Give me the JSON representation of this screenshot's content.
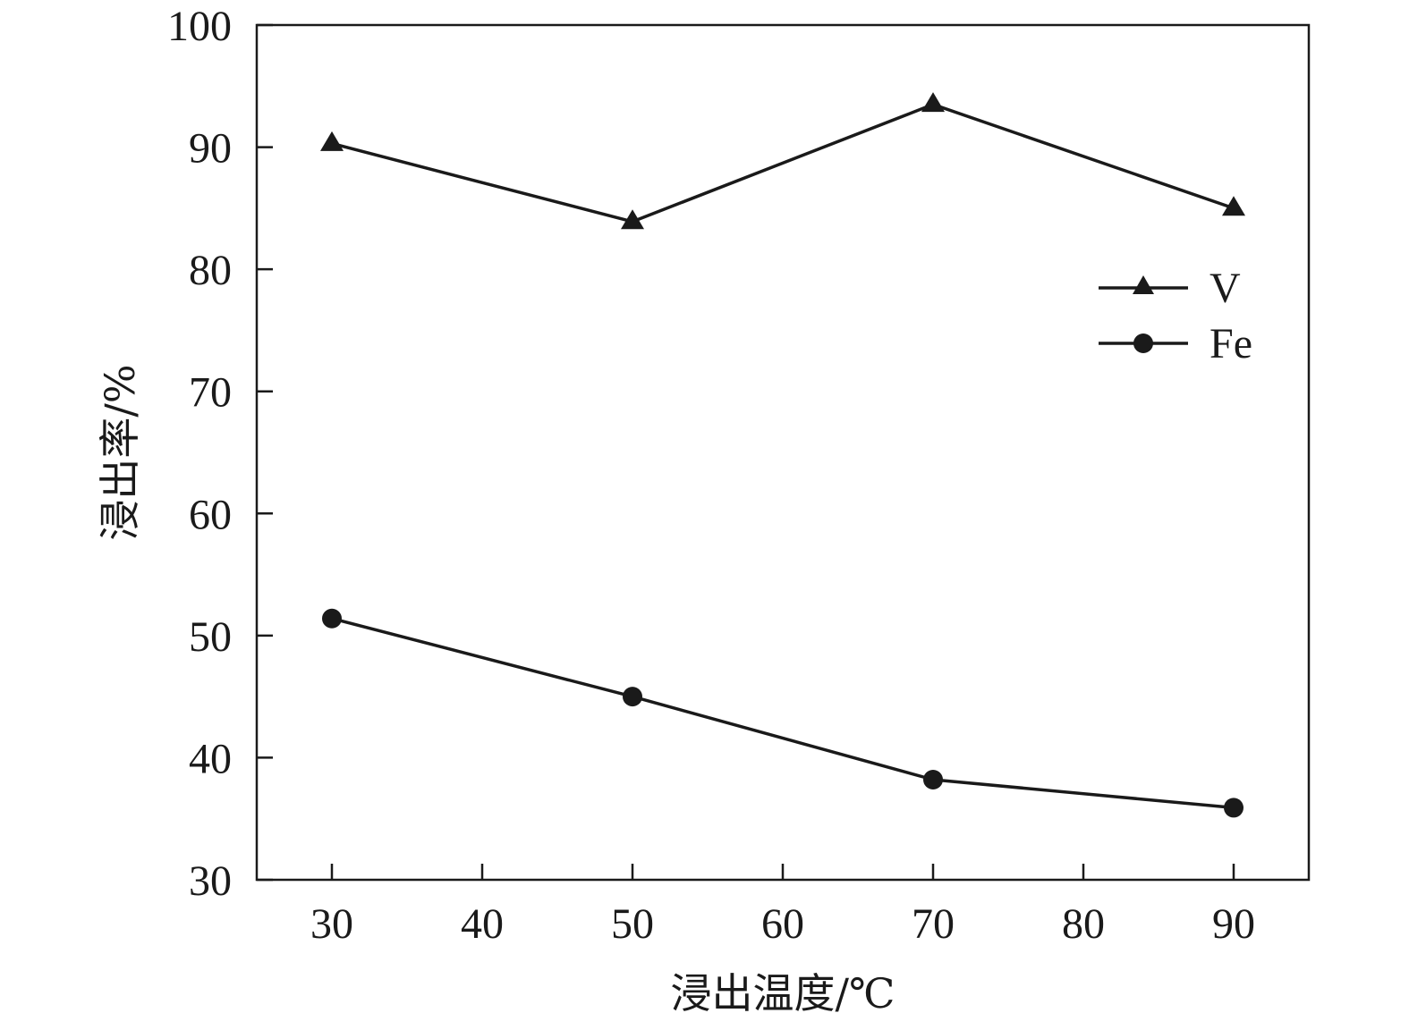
{
  "chart_data": {
    "type": "line",
    "title": "",
    "xlabel": "浸出温度/℃",
    "ylabel": "浸出率/%",
    "x": [
      30,
      50,
      70,
      90
    ],
    "xlim": [
      25,
      95
    ],
    "ylim": [
      30,
      100
    ],
    "xticks": [
      "30",
      "40",
      "50",
      "60",
      "70",
      "80",
      "90"
    ],
    "yticks": [
      "30",
      "40",
      "50",
      "60",
      "70",
      "80",
      "90",
      "100"
    ],
    "grid": false,
    "legend_position": "top-right",
    "series": [
      {
        "name": "V",
        "marker": "triangle",
        "color": "#1a1a1a",
        "values": [
          90.3,
          83.9,
          93.5,
          85.0
        ]
      },
      {
        "name": "Fe",
        "marker": "circle",
        "color": "#1a1a1a",
        "values": [
          51.4,
          45.0,
          38.2,
          35.9
        ]
      }
    ]
  }
}
